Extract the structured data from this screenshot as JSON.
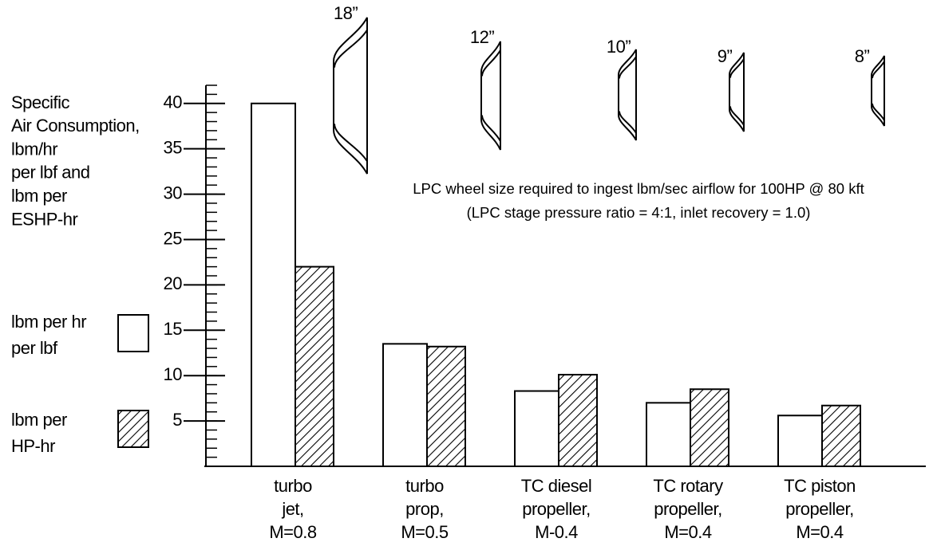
{
  "chart_data": {
    "type": "bar",
    "y_label": [
      "Specific",
      "Air Consumption,",
      "lbm/hr",
      "per lbf and",
      "lbm per",
      "ESHP-hr"
    ],
    "categories": [
      [
        "turbo",
        "jet,",
        "M=0.8"
      ],
      [
        "turbo",
        "prop,",
        "M=0.5"
      ],
      [
        "TC diesel",
        "propeller,",
        "M-0.4"
      ],
      [
        "TC rotary",
        "propeller,",
        "M=0.4"
      ],
      [
        "TC piston",
        "propeller,",
        "M=0.4"
      ]
    ],
    "series": [
      {
        "name": [
          "lbm per hr",
          "per lbf"
        ],
        "color": "#ffffff",
        "values": [
          40,
          13.5,
          8.3,
          7,
          5.6
        ]
      },
      {
        "name": [
          "lbm per",
          "HP-hr"
        ],
        "color": "hatch",
        "values": [
          22,
          13.2,
          10.1,
          8.5,
          6.7
        ]
      }
    ],
    "ylim": [
      0,
      42
    ],
    "yticks": [
      5,
      10,
      15,
      20,
      25,
      30,
      35,
      40
    ],
    "wheel_sizes": [
      "18”",
      "12”",
      "10”",
      "9”",
      "8”"
    ],
    "annotation": [
      "LPC wheel size required to ingest lbm/sec airflow for 100HP @ 80 kft",
      "(LPC stage pressure ratio = 4:1, inlet recovery = 1.0)"
    ]
  }
}
